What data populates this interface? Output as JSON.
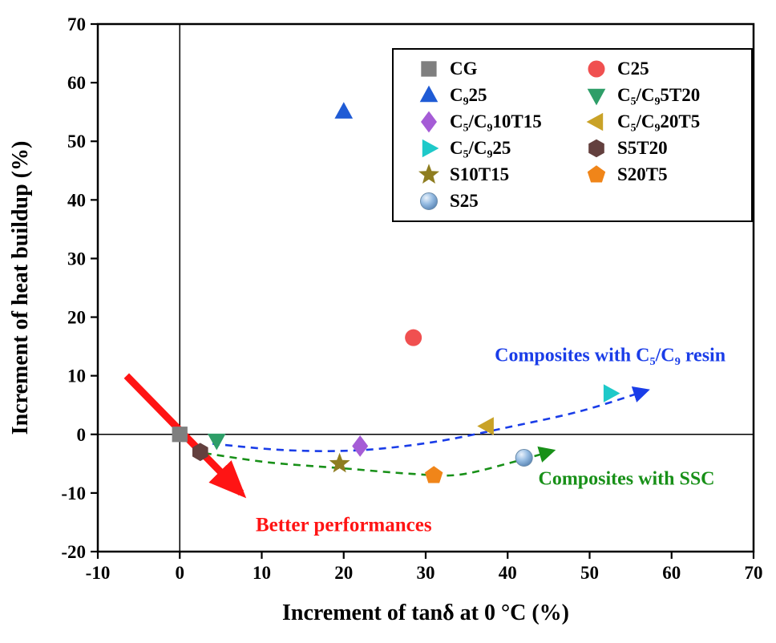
{
  "chart_data": {
    "type": "scatter",
    "title": "",
    "xlabel": "Increment of tanδ at 0 °C (%)",
    "ylabel": "Increment of heat buildup (%)",
    "xlim": [
      -10,
      70
    ],
    "ylim": [
      -20,
      70
    ],
    "xticks": [
      -10,
      0,
      10,
      20,
      30,
      40,
      50,
      60,
      70
    ],
    "yticks": [
      -20,
      -10,
      0,
      10,
      20,
      30,
      40,
      50,
      60,
      70
    ],
    "grid": false,
    "legend_position": "top-right",
    "legend_columns": 2,
    "series": [
      {
        "name": "CG",
        "label": "CG",
        "marker": "square",
        "color": "#7f7f7f",
        "x": 0,
        "y": 0
      },
      {
        "name": "C25",
        "label": "C25",
        "marker": "circle",
        "color": "#f05050",
        "x": 28.5,
        "y": 16.5
      },
      {
        "name": "C925",
        "label": "C₉25",
        "marker": "triangle-up",
        "color": "#1f5bd5",
        "x": 20,
        "y": 55
      },
      {
        "name": "C5C95T20",
        "label": "C₅/C₉5T20",
        "marker": "triangle-down",
        "color": "#2e9e68",
        "x": 4.5,
        "y": -1
      },
      {
        "name": "C5C910T15",
        "label": "C₅/C₉10T15",
        "marker": "diamond",
        "color": "#a55cd6",
        "x": 22,
        "y": -2
      },
      {
        "name": "C5C920T5",
        "label": "C₅/C₉20T5",
        "marker": "triangle-left",
        "color": "#c9a227",
        "x": 37.5,
        "y": 1.4
      },
      {
        "name": "C5C925",
        "label": "C₅/C₉25",
        "marker": "triangle-right",
        "color": "#1ec9c9",
        "x": 52.5,
        "y": 7
      },
      {
        "name": "S5T20",
        "label": "S5T20",
        "marker": "hexagon",
        "color": "#63403e",
        "x": 2.5,
        "y": -3
      },
      {
        "name": "S10T15",
        "label": "S10T15",
        "marker": "star",
        "color": "#8e7d20",
        "x": 19.5,
        "y": -5
      },
      {
        "name": "S20T5",
        "label": "S20T5",
        "marker": "pentagon",
        "color": "#f08519",
        "x": 31,
        "y": -7
      },
      {
        "name": "S25",
        "label": "S25",
        "marker": "sphere",
        "color": "#8fb4dd",
        "x": 42,
        "y": -4
      }
    ],
    "curves": [
      {
        "name": "c5c9-resin-trend",
        "color": "#1a3de8",
        "dashed": true,
        "points": [
          [
            4,
            -1.6
          ],
          [
            13,
            -2.7
          ],
          [
            22,
            -2.7
          ],
          [
            31,
            -1.3
          ],
          [
            40,
            1.2
          ],
          [
            49,
            4.0
          ],
          [
            57,
            7.5
          ]
        ]
      },
      {
        "name": "ssc-trend",
        "color": "#189018",
        "dashed": true,
        "points": [
          [
            3,
            -3.2
          ],
          [
            11,
            -4.8
          ],
          [
            20,
            -5.8
          ],
          [
            28,
            -6.7
          ],
          [
            34,
            -6.9
          ],
          [
            41,
            -4.6
          ],
          [
            45.5,
            -2.8
          ]
        ]
      }
    ],
    "arrow": {
      "name": "better-performances-arrow",
      "color": "#ff1414",
      "from": [
        -6.5,
        10
      ],
      "to": [
        7.5,
        -10
      ]
    },
    "annotations": [
      {
        "name": "c5c9-annotation",
        "text": "Composites with C₅/C₉ resin",
        "x": 52.5,
        "y": 12.5,
        "color": "#1a3de8",
        "size": 24
      },
      {
        "name": "ssc-annotation",
        "text": "Composites with SSC",
        "x": 54.5,
        "y": -8.6,
        "color": "#189018",
        "size": 24
      },
      {
        "name": "better-performances-label",
        "text": "Better performances",
        "x": 20,
        "y": -16.5,
        "color": "#ff1414",
        "size": 25
      }
    ]
  }
}
